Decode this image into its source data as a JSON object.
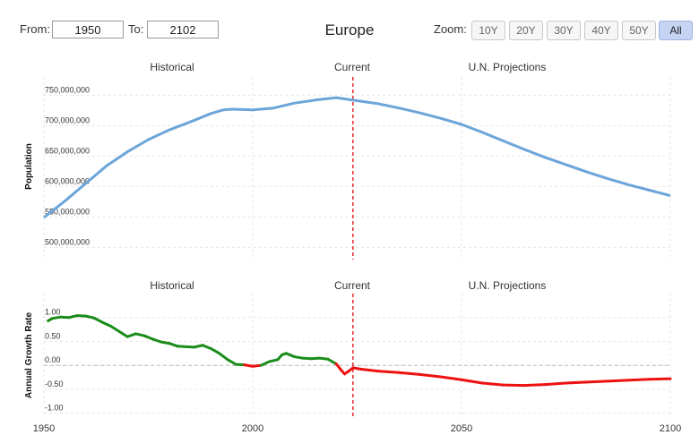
{
  "controls": {
    "from_label": "From:",
    "from_value": "1950",
    "to_label": "To:",
    "to_value": "2102",
    "zoom_label": "Zoom:",
    "zoom_buttons": [
      "10Y",
      "20Y",
      "30Y",
      "40Y",
      "50Y",
      "All"
    ],
    "zoom_active": "All"
  },
  "title": "Europe",
  "section_labels": {
    "historical": "Historical",
    "current": "Current",
    "projections": "U.N. Projections"
  },
  "colors": {
    "population_line": "#6ca5d9",
    "growth_positive": "#1a8c1a",
    "growth_negative": "#ee1111",
    "current_marker": "#e02020"
  },
  "chart_data": [
    {
      "type": "line",
      "ylabel": "Population",
      "xlabel": "",
      "xlim": [
        1950,
        2100
      ],
      "ylim": [
        480000000,
        780000000
      ],
      "yticks": [
        500000000,
        550000000,
        600000000,
        650000000,
        700000000,
        750000000
      ],
      "ytick_labels": [
        "500,000,000",
        "550,000,000",
        "600,000,000",
        "650,000,000",
        "700,000,000",
        "750,000,000"
      ],
      "current_year": 2024,
      "series": [
        {
          "x": [
            1950,
            1955,
            1960,
            1965,
            1970,
            1975,
            1980,
            1985,
            1990,
            1993,
            1995,
            2000,
            2005,
            2010,
            2015,
            2020,
            2022,
            2025,
            2030,
            2035,
            2040,
            2045,
            2050,
            2055,
            2060,
            2065,
            2070,
            2075,
            2080,
            2085,
            2090,
            2095,
            2100
          ],
          "y": [
            549000000,
            576000000,
            605000000,
            634000000,
            657000000,
            677000000,
            693000000,
            706000000,
            720000000,
            726000000,
            727000000,
            726000000,
            729000000,
            737000000,
            742000000,
            746000000,
            744000000,
            741000000,
            736000000,
            729000000,
            721000000,
            712000000,
            702000000,
            689000000,
            675000000,
            661000000,
            648000000,
            636000000,
            624000000,
            613000000,
            603000000,
            594000000,
            585000000
          ]
        }
      ]
    },
    {
      "type": "line",
      "ylabel": "Annual Growth Rate",
      "xlabel": "",
      "xlim": [
        1950,
        2100
      ],
      "ylim": [
        -1.1,
        1.5
      ],
      "yticks": [
        -1.0,
        -0.5,
        0.0,
        0.5,
        1.0
      ],
      "ytick_labels": [
        "-1.00",
        "-0.50",
        "0.00",
        "0.50",
        "1.00"
      ],
      "xticks": [
        1950,
        2000,
        2050,
        2100
      ],
      "xtick_labels": [
        "1950",
        "2000",
        "2050",
        "2100"
      ],
      "current_year": 2024,
      "series": [
        {
          "x": [
            1951,
            1952,
            1954,
            1956,
            1958,
            1960,
            1962,
            1964,
            1966,
            1968,
            1970,
            1972,
            1974,
            1976,
            1978,
            1980,
            1982,
            1984,
            1986,
            1988,
            1990,
            1992,
            1994,
            1996,
            1998,
            2000,
            2002,
            2004,
            2006,
            2007,
            2008,
            2010,
            2012,
            2014,
            2016,
            2018,
            2020,
            2021,
            2022,
            2023,
            2024,
            2026,
            2030,
            2035,
            2040,
            2045,
            2050,
            2055,
            2060,
            2065,
            2070,
            2075,
            2080,
            2085,
            2090,
            2095,
            2100
          ],
          "y": [
            0.93,
            0.98,
            1.01,
            1.0,
            1.04,
            1.03,
            0.99,
            0.9,
            0.82,
            0.71,
            0.6,
            0.66,
            0.62,
            0.55,
            0.49,
            0.46,
            0.4,
            0.39,
            0.38,
            0.42,
            0.35,
            0.25,
            0.12,
            0.02,
            0.01,
            -0.02,
            0.0,
            0.08,
            0.12,
            0.22,
            0.25,
            0.18,
            0.15,
            0.14,
            0.15,
            0.13,
            0.03,
            -0.08,
            -0.18,
            -0.12,
            -0.05,
            -0.08,
            -0.12,
            -0.15,
            -0.19,
            -0.24,
            -0.3,
            -0.37,
            -0.41,
            -0.42,
            -0.4,
            -0.37,
            -0.35,
            -0.33,
            -0.31,
            -0.29,
            -0.28
          ]
        }
      ]
    }
  ]
}
